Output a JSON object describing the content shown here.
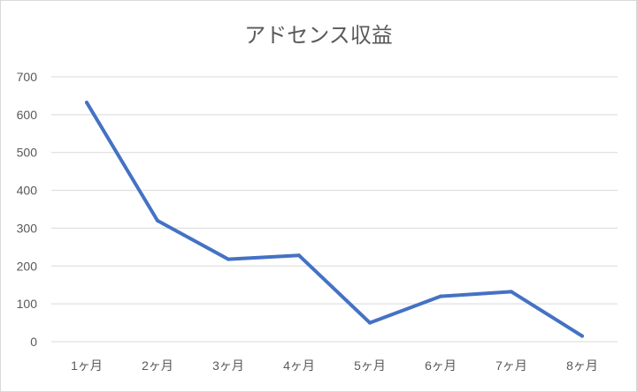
{
  "chart_data": {
    "type": "line",
    "title": "アドセンス収益",
    "categories": [
      "1ヶ月",
      "2ヶ月",
      "3ヶ月",
      "4ヶ月",
      "5ヶ月",
      "6ヶ月",
      "7ヶ月",
      "8ヶ月"
    ],
    "series": [
      {
        "values": [
          632,
          320,
          218,
          228,
          50,
          120,
          132,
          15
        ]
      }
    ],
    "ylim": [
      0,
      700
    ],
    "yticks": [
      0,
      100,
      200,
      300,
      400,
      500,
      600,
      700
    ],
    "grid": true,
    "legend": "none",
    "xlabel": "",
    "ylabel": "",
    "colors": {
      "line": "#4472c4",
      "grid": "#d9d9d9",
      "text": "#595959"
    }
  }
}
